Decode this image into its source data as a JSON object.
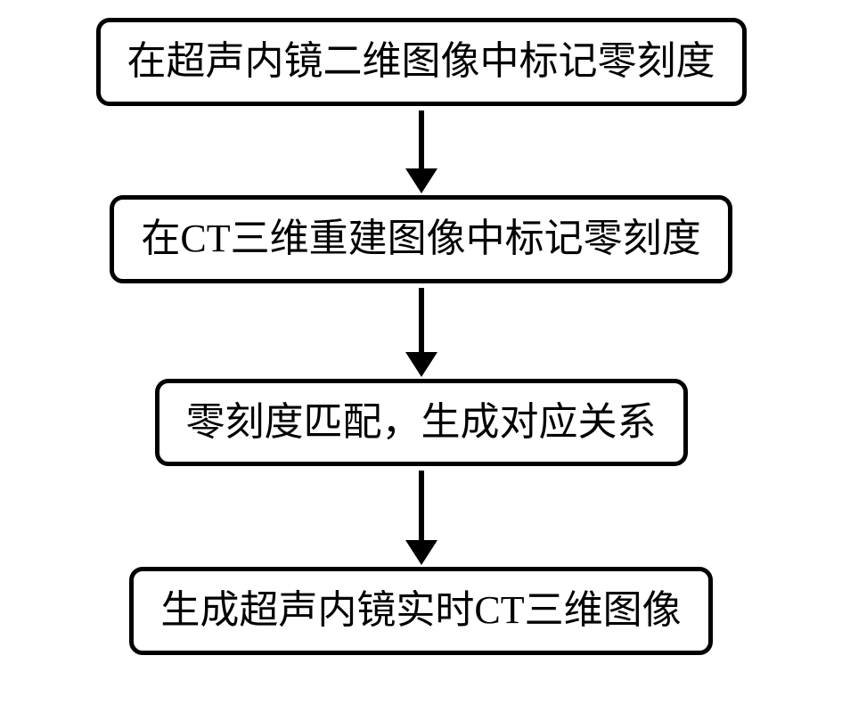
{
  "flowchart": {
    "type": "flowchart",
    "background_color": "#ffffff",
    "node_border_color": "#000000",
    "node_border_width": 5,
    "node_border_radius": 15,
    "node_fill": "#ffffff",
    "text_color": "#000000",
    "font_size": 44,
    "font_family": "SimSun",
    "arrow_color": "#000000",
    "arrow_line_width": 6,
    "nodes": [
      {
        "id": "n1",
        "label": "在超声内镜二维图像中标记零刻度"
      },
      {
        "id": "n2",
        "label": "在CT三维重建图像中标记零刻度"
      },
      {
        "id": "n3",
        "label": "零刻度匹配，生成对应关系"
      },
      {
        "id": "n4",
        "label": "生成超声内镜实时CT三维图像"
      }
    ],
    "arrows": [
      {
        "from": "n1",
        "to": "n2",
        "line_height": 65
      },
      {
        "from": "n2",
        "to": "n3",
        "line_height": 72
      },
      {
        "from": "n3",
        "to": "n4",
        "line_height": 78
      }
    ]
  }
}
